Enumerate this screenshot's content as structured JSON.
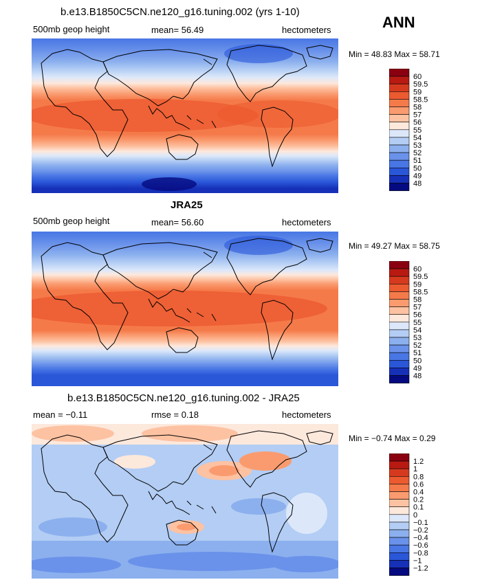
{
  "season": "ANN",
  "panels": [
    {
      "title": "b.e13.B1850C5CN.ne120_g16.tuning.002 (yrs 1-10)",
      "left_label": "500mb geop height",
      "mid_label": "mean=  56.49",
      "right_label": "hectometers",
      "minmax": "Min =   48.83  Max =   58.71"
    },
    {
      "title": "JRA25",
      "left_label": "500mb geop height",
      "mid_label": "mean=  56.60",
      "right_label": "hectometers",
      "minmax": "Min =   49.27  Max =   58.75"
    },
    {
      "title": "b.e13.B1850C5CN.ne120_g16.tuning.002 - JRA25",
      "left_label": "mean =   −0.11",
      "mid_label": "rmse =    0.18",
      "right_label": "hectometers",
      "minmax": "Min =   −0.74  Max =    0.29"
    }
  ],
  "colorbars": {
    "field_levels": [
      "60",
      "59.5",
      "59",
      "58.5",
      "58",
      "57",
      "56",
      "55",
      "54",
      "53",
      "52",
      "51",
      "50",
      "49",
      "48"
    ],
    "field_colors": [
      "#8a0010",
      "#b81a12",
      "#d63a1e",
      "#ec5a30",
      "#f57a4a",
      "#fa9b6f",
      "#fdc2a2",
      "#fde8dc",
      "#dce8fa",
      "#b3cdf4",
      "#8cb0ee",
      "#6a92ea",
      "#4876e4",
      "#2a56d8",
      "#1630b8",
      "#050a80"
    ],
    "diff_levels": [
      "1.2",
      "1",
      "0.8",
      "0.6",
      "0.4",
      "0.2",
      "0.1",
      "0",
      "−0.1",
      "−0.2",
      "−0.4",
      "−0.6",
      "−0.8",
      "−1",
      "−1.2"
    ],
    "diff_colors": [
      "#8a0010",
      "#b81a12",
      "#d63a1e",
      "#ec5a30",
      "#f57a4a",
      "#fa9b6f",
      "#fdc2a2",
      "#fde8dc",
      "#dce8fa",
      "#b3cdf4",
      "#8cb0ee",
      "#6a92ea",
      "#4876e4",
      "#2a56d8",
      "#1630b8",
      "#050a80"
    ]
  }
}
